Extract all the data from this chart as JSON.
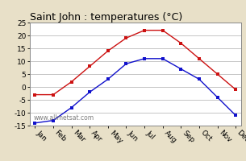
{
  "title": "Saint John : temperatures (°C)",
  "months": [
    "Jan",
    "Feb",
    "Mar",
    "Apr",
    "May",
    "Jun",
    "Jul",
    "Aug",
    "Sep",
    "Oct",
    "Nov",
    "Dec"
  ],
  "high_temps": [
    -3,
    -3,
    2,
    8,
    14,
    19,
    22,
    22,
    17,
    11,
    5,
    -1
  ],
  "low_temps": [
    -14,
    -13,
    -8,
    -2,
    3,
    9,
    11,
    11,
    7,
    3,
    -4,
    -11
  ],
  "high_color": "#cc1111",
  "low_color": "#1111cc",
  "bg_color": "#e8e0c8",
  "plot_bg": "#ffffff",
  "grid_color": "#bbbbbb",
  "ylim": [
    -15,
    25
  ],
  "yticks": [
    -15,
    -10,
    -5,
    0,
    5,
    10,
    15,
    20,
    25
  ],
  "watermark": "www.allmetsat.com",
  "title_fontsize": 9,
  "axis_fontsize": 6.5,
  "watermark_fontsize": 5.5
}
